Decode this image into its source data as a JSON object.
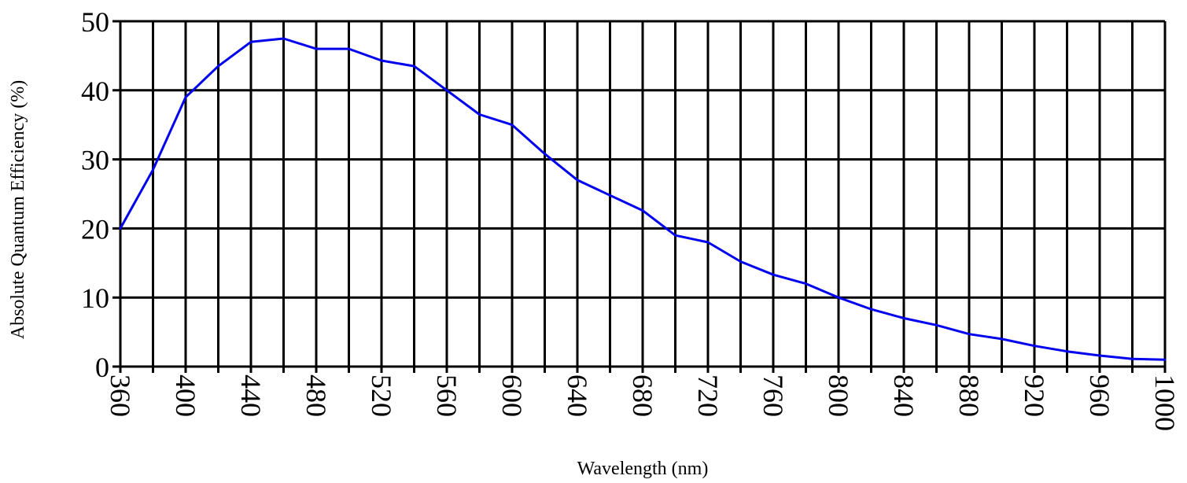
{
  "chart_data": {
    "type": "line",
    "xlabel": "Wavelength (nm)",
    "ylabel": "Absolute Quantum Efficiency (%)",
    "xlim": [
      360,
      1000
    ],
    "ylim": [
      0,
      50
    ],
    "x_ticks": [
      "360",
      "400",
      "440",
      "480",
      "520",
      "560",
      "600",
      "640",
      "680",
      "720",
      "760",
      "800",
      "840",
      "880",
      "920",
      "960",
      "1000"
    ],
    "y_ticks": [
      "0",
      "10",
      "20",
      "30",
      "40",
      "50"
    ],
    "grid": true,
    "series_color": "#0000ee",
    "series": [
      {
        "x": [
          360,
          380,
          400,
          420,
          440,
          460,
          480,
          500,
          520,
          540,
          560,
          580,
          600,
          620,
          640,
          660,
          680,
          700,
          720,
          740,
          760,
          780,
          800,
          820,
          840,
          860,
          880,
          900,
          920,
          940,
          960,
          980,
          1000
        ],
        "y": [
          20,
          28.5,
          39,
          43.5,
          47,
          47.5,
          46,
          46,
          44.3,
          43.5,
          40,
          36.5,
          35,
          30.8,
          27,
          24.8,
          22.6,
          19,
          18,
          15.2,
          13.3,
          12,
          10,
          8.3,
          7,
          6,
          4.7,
          4,
          3,
          2.2,
          1.6,
          1.1,
          1
        ]
      }
    ]
  }
}
